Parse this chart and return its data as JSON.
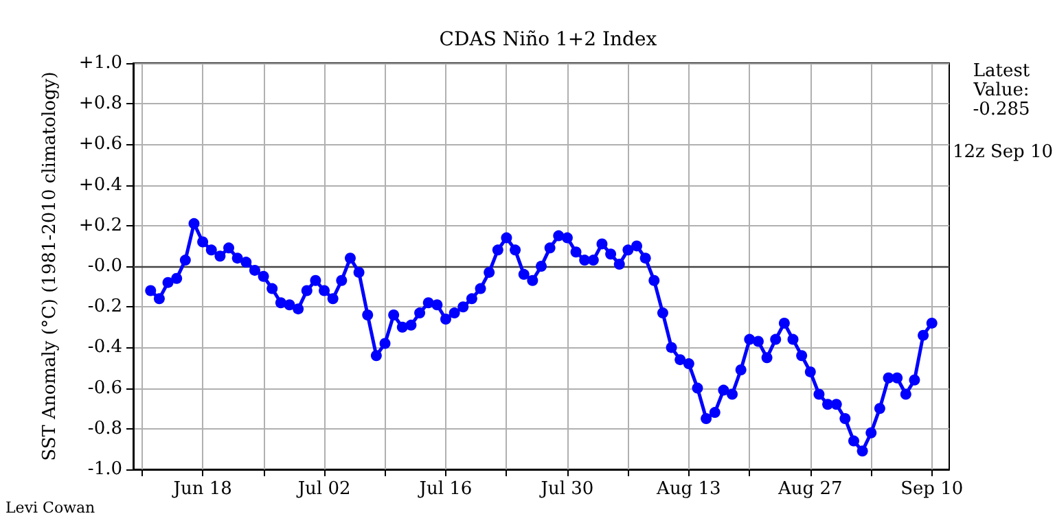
{
  "chart_data": {
    "type": "line",
    "title": "CDAS Niño 1+2 Index",
    "ylabel": "SST Anomaly (°C) (1981-2010 climatology)",
    "annotations": [
      "Latest\nValue:\n-0.285",
      "12z Sep 10",
      "Levi Cowan"
    ],
    "x": [
      "--06-12",
      "--06-13",
      "--06-14",
      "--06-15",
      "--06-16",
      "--06-17",
      "--06-18",
      "--06-19",
      "--06-20",
      "--06-21",
      "--06-22",
      "--06-23",
      "--06-24",
      "--06-25",
      "--06-26",
      "--06-27",
      "--06-28",
      "--06-29",
      "--06-30",
      "--07-01",
      "--07-02",
      "--07-03",
      "--07-04",
      "--07-05",
      "--07-06",
      "--07-07",
      "--07-08",
      "--07-09",
      "--07-10",
      "--07-11",
      "--07-12",
      "--07-13",
      "--07-14",
      "--07-15",
      "--07-16",
      "--07-17",
      "--07-18",
      "--07-19",
      "--07-20",
      "--07-21",
      "--07-22",
      "--07-23",
      "--07-24",
      "--07-25",
      "--07-26",
      "--07-27",
      "--07-28",
      "--07-29",
      "--07-30",
      "--07-31",
      "--08-01",
      "--08-02",
      "--08-03",
      "--08-04",
      "--08-05",
      "--08-06",
      "--08-07",
      "--08-08",
      "--08-09",
      "--08-10",
      "--08-11",
      "--08-12",
      "--08-13",
      "--08-14",
      "--08-15",
      "--08-16",
      "--08-17",
      "--08-18",
      "--08-19",
      "--08-20",
      "--08-21",
      "--08-22",
      "--08-23",
      "--08-24",
      "--08-25",
      "--08-26",
      "--08-27",
      "--08-28",
      "--08-29",
      "--08-30",
      "--08-31",
      "--09-01",
      "--09-02",
      "--09-03",
      "--09-04",
      "--09-05",
      "--09-06",
      "--09-07",
      "--09-08",
      "--09-09",
      "--09-10"
    ],
    "series": [
      {
        "color": "#0000ff",
        "values": [
          -0.12,
          -0.16,
          -0.08,
          -0.06,
          0.03,
          0.21,
          0.12,
          0.08,
          0.05,
          0.09,
          0.04,
          0.02,
          -0.02,
          -0.05,
          -0.11,
          -0.18,
          -0.19,
          -0.21,
          -0.12,
          -0.07,
          -0.12,
          -0.16,
          -0.07,
          0.04,
          -0.03,
          -0.24,
          -0.44,
          -0.38,
          -0.24,
          -0.3,
          -0.29,
          -0.23,
          -0.18,
          -0.19,
          -0.26,
          -0.23,
          -0.2,
          -0.16,
          -0.11,
          -0.03,
          0.08,
          0.14,
          0.08,
          -0.04,
          -0.07,
          0.0,
          0.09,
          0.15,
          0.14,
          0.07,
          0.03,
          0.03,
          0.11,
          0.06,
          0.01,
          0.08,
          0.1,
          0.04,
          -0.07,
          -0.23,
          -0.4,
          -0.46,
          -0.48,
          -0.6,
          -0.75,
          -0.72,
          -0.61,
          -0.63,
          -0.51,
          -0.36,
          -0.37,
          -0.45,
          -0.36,
          -0.28,
          -0.36,
          -0.44,
          -0.52,
          -0.63,
          -0.68,
          -0.68,
          -0.75,
          -0.86,
          -0.91,
          -0.82,
          -0.7,
          -0.55,
          -0.55,
          -0.63,
          -0.56,
          -0.34,
          -0.28
        ]
      }
    ],
    "xlim": [
      "--06-10",
      "--09-12"
    ],
    "xticks": [
      {
        "value": "--06-11",
        "label": null
      },
      {
        "value": "--06-18",
        "label": "Jun 18"
      },
      {
        "value": "--06-25",
        "label": null
      },
      {
        "value": "--07-02",
        "label": "Jul 02"
      },
      {
        "value": "--07-09",
        "label": null
      },
      {
        "value": "--07-16",
        "label": "Jul 16"
      },
      {
        "value": "--07-23",
        "label": null
      },
      {
        "value": "--07-30",
        "label": "Jul 30"
      },
      {
        "value": "--08-06",
        "label": null
      },
      {
        "value": "--08-13",
        "label": "Aug 13"
      },
      {
        "value": "--08-20",
        "label": null
      },
      {
        "value": "--08-27",
        "label": "Aug 27"
      },
      {
        "value": "--09-03",
        "label": null
      },
      {
        "value": "--09-10",
        "label": "Sep 10"
      }
    ],
    "ylim": [
      -1.0,
      1.0
    ],
    "yticks": [
      {
        "value": -1.0,
        "label": "-1.0"
      },
      {
        "value": -0.8,
        "label": "-0.8"
      },
      {
        "value": -0.6,
        "label": "-0.6"
      },
      {
        "value": -0.4,
        "label": "-0.4"
      },
      {
        "value": -0.2,
        "label": "-0.2"
      },
      {
        "value": 0.0,
        "label": "-0.0"
      },
      {
        "value": 0.2,
        "label": "+0.2"
      },
      {
        "value": 0.4,
        "label": "+0.4"
      },
      {
        "value": 0.6,
        "label": "+0.6"
      },
      {
        "value": 0.8,
        "label": "+0.8"
      },
      {
        "value": 1.0,
        "label": "+1.0"
      }
    ],
    "ref_lines": [
      {
        "axis": "y",
        "value": 0,
        "color": "#444444"
      }
    ],
    "grid": true,
    "marker": "circle",
    "line_style": "solid"
  }
}
